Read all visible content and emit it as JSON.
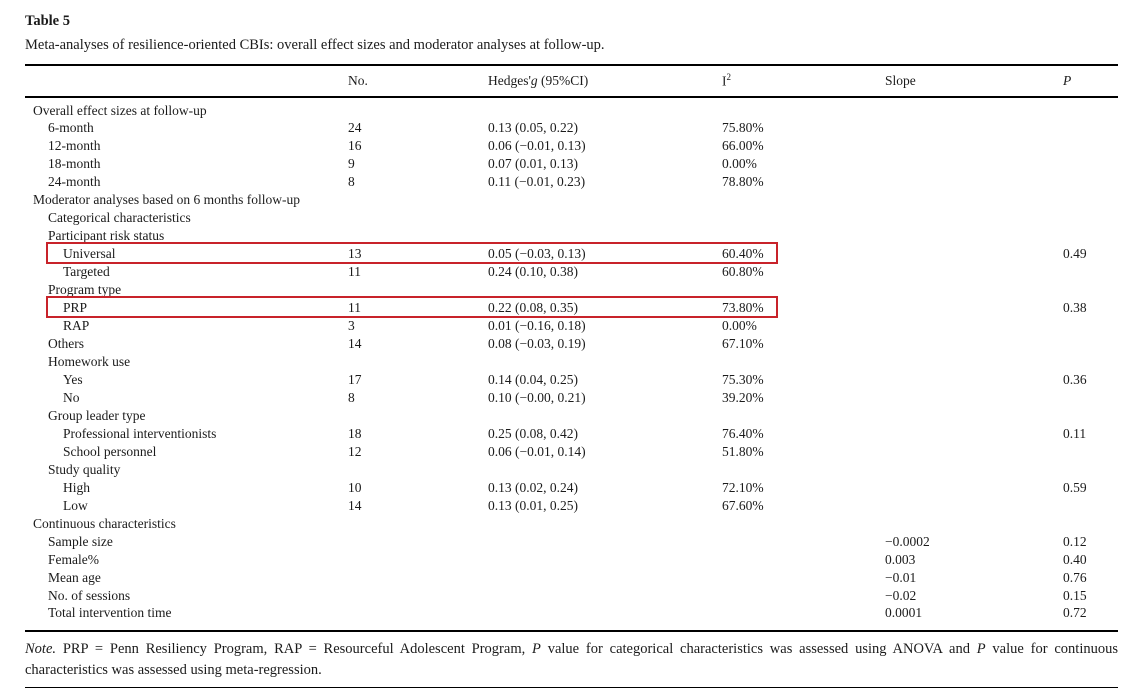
{
  "page": {
    "title": "Table 5",
    "subtitle": "Meta-analyses of resilience-oriented CBIs: overall effect sizes and moderator analyses at follow-up."
  },
  "colors": {
    "highlight_box": "#c8232a"
  },
  "table": {
    "columns": {
      "label": "",
      "no": "No.",
      "hedges_prefix": "Hedges'",
      "hedges_italic": "g",
      "hedges_suffix": " (95%CI)",
      "i2_base": "I",
      "i2_sup": "2",
      "slope": "Slope",
      "p": "P"
    },
    "rows": [
      {
        "indent": 0,
        "label": "Overall effect sizes at follow-up"
      },
      {
        "indent": 1,
        "label": "6-month",
        "no": "24",
        "hedges": "0.13 (0.05, 0.22)",
        "i2": "75.80%"
      },
      {
        "indent": 1,
        "label": "12-month",
        "no": "16",
        "hedges": "0.06 (−0.01, 0.13)",
        "i2": "66.00%"
      },
      {
        "indent": 1,
        "label": "18-month",
        "no": "9",
        "hedges": "0.07 (0.01, 0.13)",
        "i2": "0.00%"
      },
      {
        "indent": 1,
        "label": "24-month",
        "no": "8",
        "hedges": "0.11 (−0.01, 0.23)",
        "i2": "78.80%"
      },
      {
        "indent": 0,
        "label": "Moderator analyses based on 6 months follow-up"
      },
      {
        "indent": 1,
        "label": "Categorical characteristics"
      },
      {
        "indent": 1,
        "label": "Participant risk status"
      },
      {
        "indent": 2,
        "label": "Universal",
        "no": "13",
        "hedges": "0.05 (−0.03, 0.13)",
        "i2": "60.40%",
        "p": "0.49",
        "highlight": true
      },
      {
        "indent": 2,
        "label": "Targeted",
        "no": "11",
        "hedges": "0.24 (0.10, 0.38)",
        "i2": "60.80%"
      },
      {
        "indent": 1,
        "label": "Program type"
      },
      {
        "indent": 2,
        "label": "PRP",
        "no": "11",
        "hedges": "0.22 (0.08, 0.35)",
        "i2": "73.80%",
        "p": "0.38",
        "highlight": true
      },
      {
        "indent": 2,
        "label": "RAP",
        "no": "3",
        "hedges": "0.01 (−0.16, 0.18)",
        "i2": "0.00%"
      },
      {
        "indent": 1,
        "label": "Others",
        "no": "14",
        "hedges": "0.08 (−0.03, 0.19)",
        "i2": "67.10%"
      },
      {
        "indent": 1,
        "label": "Homework use"
      },
      {
        "indent": 2,
        "label": "Yes",
        "no": "17",
        "hedges": "0.14 (0.04, 0.25)",
        "i2": "75.30%",
        "p": "0.36"
      },
      {
        "indent": 2,
        "label": "No",
        "no": "8",
        "hedges": "0.10 (−0.00, 0.21)",
        "i2": "39.20%"
      },
      {
        "indent": 1,
        "label": "Group leader type"
      },
      {
        "indent": 2,
        "label": "Professional interventionists",
        "no": "18",
        "hedges": "0.25 (0.08, 0.42)",
        "i2": "76.40%",
        "p": "0.11"
      },
      {
        "indent": 2,
        "label": "School personnel",
        "no": "12",
        "hedges": "0.06 (−0.01, 0.14)",
        "i2": "51.80%"
      },
      {
        "indent": 1,
        "label": "Study quality"
      },
      {
        "indent": 2,
        "label": "High",
        "no": "10",
        "hedges": "0.13 (0.02, 0.24)",
        "i2": "72.10%",
        "p": "0.59"
      },
      {
        "indent": 2,
        "label": "Low",
        "no": "14",
        "hedges": "0.13 (0.01, 0.25)",
        "i2": "67.60%"
      },
      {
        "indent": 0,
        "label": "Continuous characteristics"
      },
      {
        "indent": 1,
        "label": "Sample size",
        "slope": "−0.0002",
        "p": "0.12"
      },
      {
        "indent": 1,
        "label": "Female%",
        "slope": "0.003",
        "p": "0.40"
      },
      {
        "indent": 1,
        "label": "Mean age",
        "slope": "−0.01",
        "p": "0.76"
      },
      {
        "indent": 1,
        "label": "No. of sessions",
        "slope": "−0.02",
        "p": "0.15"
      },
      {
        "indent": 1,
        "label": "Total intervention time",
        "slope": "0.0001",
        "p": "0.72"
      }
    ]
  },
  "footnote": {
    "segments": [
      {
        "text": "Note.",
        "italic": true
      },
      {
        "text": " PRP = Penn Resiliency Program, RAP = Resourceful Adolescent Program, ",
        "italic": false
      },
      {
        "text": "P",
        "italic": true
      },
      {
        "text": " value for categorical characteristics was assessed using ANOVA and ",
        "italic": false
      },
      {
        "text": "P",
        "italic": true
      },
      {
        "text": " value for continuous characteristics was assessed using meta-regression.",
        "italic": false
      }
    ]
  }
}
